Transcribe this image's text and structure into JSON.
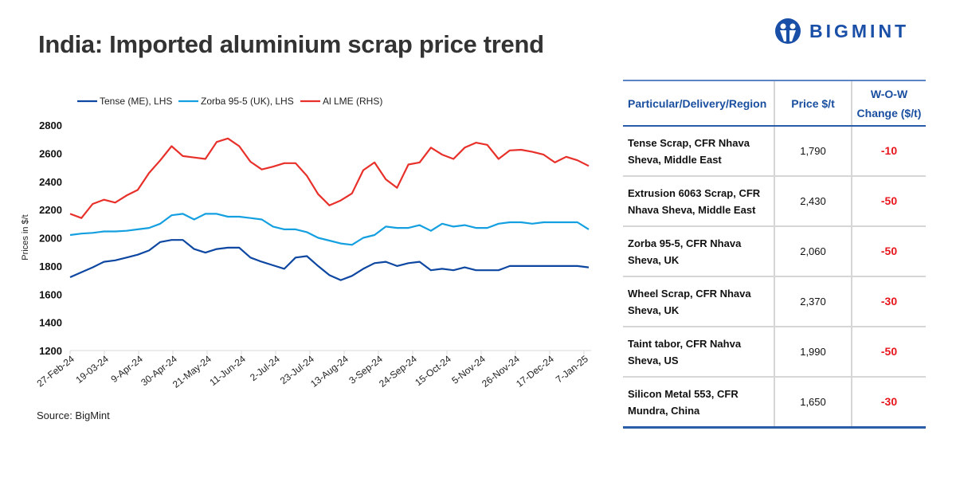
{
  "title": "India: Imported aluminium scrap price trend",
  "logo": {
    "text": "BIGMINT",
    "color": "#1a4fa8"
  },
  "source": "Source: BigMint",
  "chart_data": {
    "type": "line",
    "ylabel": "Prices in $/t",
    "ylim": [
      1200,
      2800
    ],
    "yticks": [
      1200,
      1400,
      1600,
      1800,
      2000,
      2200,
      2400,
      2600,
      2800
    ],
    "xtick_labels": [
      "27-Feb-24",
      "19-03-24",
      "9-Apr-24",
      "30-Apr-24",
      "21-May-24",
      "11-Jun-24",
      "2-Jul-24",
      "23-Jul-24",
      "13-Aug-24",
      "3-Sep-24",
      "24-Sep-24",
      "15-Oct-24",
      "5-Nov-24",
      "26-Nov-24",
      "17-Dec-24",
      "7-Jan-25"
    ],
    "grid": false,
    "legend_position": "top",
    "series": [
      {
        "name": "Tense (ME), LHS",
        "color": "#0d47a1",
        "values": [
          1720,
          1755,
          1790,
          1830,
          1840,
          1860,
          1880,
          1910,
          1970,
          1985,
          1985,
          1920,
          1895,
          1920,
          1930,
          1930,
          1860,
          1830,
          1805,
          1780,
          1860,
          1870,
          1800,
          1735,
          1700,
          1730,
          1780,
          1820,
          1830,
          1800,
          1820,
          1830,
          1770,
          1780,
          1770,
          1790,
          1770,
          1770,
          1770,
          1800,
          1800,
          1800,
          1800,
          1800,
          1800,
          1800,
          1790
        ]
      },
      {
        "name": "Zorba 95-5 (UK), LHS",
        "color": "#14a0e0",
        "values": [
          2020,
          2030,
          2035,
          2045,
          2045,
          2050,
          2060,
          2070,
          2100,
          2160,
          2170,
          2130,
          2170,
          2170,
          2150,
          2150,
          2140,
          2130,
          2080,
          2060,
          2060,
          2040,
          2000,
          1980,
          1960,
          1950,
          2000,
          2020,
          2080,
          2070,
          2070,
          2090,
          2050,
          2100,
          2080,
          2090,
          2070,
          2070,
          2100,
          2110,
          2110,
          2100,
          2110,
          2110,
          2110,
          2110,
          2060
        ]
      },
      {
        "name": "Al LME (RHS)",
        "color": "#e8302a",
        "values": [
          2170,
          2140,
          2240,
          2270,
          2250,
          2300,
          2340,
          2460,
          2550,
          2650,
          2580,
          2570,
          2560,
          2680,
          2705,
          2650,
          2540,
          2485,
          2505,
          2530,
          2530,
          2440,
          2310,
          2230,
          2265,
          2315,
          2480,
          2535,
          2415,
          2355,
          2520,
          2535,
          2640,
          2590,
          2560,
          2640,
          2675,
          2660,
          2560,
          2620,
          2625,
          2610,
          2590,
          2535,
          2575,
          2550,
          2510
        ]
      }
    ]
  },
  "table": {
    "headers": [
      "Particular/Delivery/Region",
      "Price $/t",
      "W-O-W Change ($/t)"
    ],
    "rows": [
      {
        "item": "Tense Scrap, CFR Nhava Sheva, Middle East",
        "price": "1,790",
        "change": "-10"
      },
      {
        "item": "Extrusion 6063 Scrap, CFR Nhava Sheva, Middle East",
        "price": "2,430",
        "change": "-50"
      },
      {
        "item": "Zorba 95-5, CFR Nhava Sheva, UK",
        "price": "2,060",
        "change": "-50"
      },
      {
        "item": "Wheel Scrap, CFR Nhava Sheva, UK",
        "price": "2,370",
        "change": "-30"
      },
      {
        "item": "Taint tabor, CFR Nahva Sheva, US",
        "price": "1,990",
        "change": "-50"
      },
      {
        "item": "Silicon Metal 553, CFR Mundra, China",
        "price": "1,650",
        "change": "-30"
      }
    ]
  }
}
